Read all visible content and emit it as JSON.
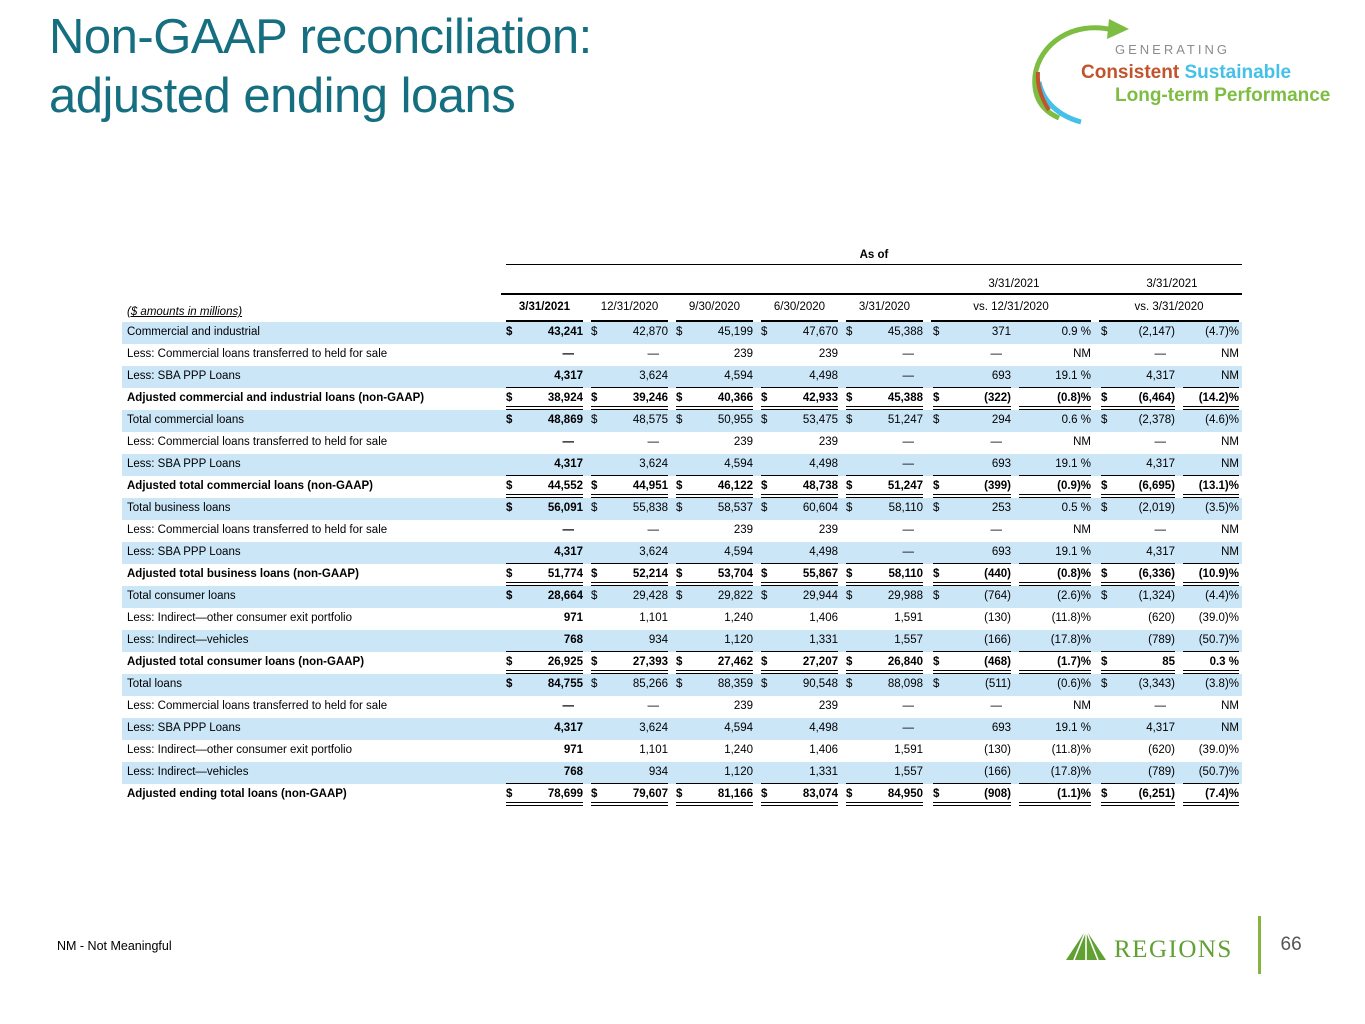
{
  "slide": {
    "title_line1": "Non-GAAP reconciliation:",
    "title_line2": "adjusted ending loans",
    "footnote": "NM - Not Meaningful",
    "page_number": "66"
  },
  "tagline": {
    "word_generating": "GENERATING",
    "word_consistent": "Consistent",
    "word_sustainable": " Sustainable",
    "word_longterm": "Long-term Performance",
    "colors": {
      "generating": "#8a8c8e",
      "consistent": "#c2532c",
      "sustainable": "#45c0e8",
      "longterm": "#7cbd42"
    }
  },
  "regions_logo": {
    "wordmark": "REGIONS",
    "green": "#61a033"
  },
  "theme": {
    "title_teal": "#166f80",
    "band_blue": "#cbe6f7"
  },
  "table": {
    "caption": "($ amounts in millions)",
    "as_of_label": "As of",
    "date_columns": [
      "3/31/2021",
      "12/31/2020",
      "9/30/2020",
      "6/30/2020",
      "3/31/2020"
    ],
    "vs_headers": [
      {
        "top": "3/31/2021",
        "bottom": "vs. 12/31/2020"
      },
      {
        "top": "3/31/2021",
        "bottom": "vs. 3/31/2020"
      }
    ],
    "rows": [
      {
        "label": "Commercial and industrial",
        "shade": true,
        "bold": false,
        "dollar": true,
        "vals": [
          "43,241",
          "42,870",
          "45,199",
          "47,670",
          "45,388"
        ],
        "vs1_amt": "371",
        "vs1_pct": "0.9 %",
        "vs2_amt": "(2,147)",
        "vs2_pct": "(4.7)%",
        "ul": "none"
      },
      {
        "label": "Less: Commercial loans transferred to held for sale",
        "shade": false,
        "bold": false,
        "dollar": false,
        "vals": [
          "—",
          "—",
          "239",
          "239",
          "—"
        ],
        "vs1_amt": "—",
        "vs1_pct": "NM",
        "vs2_amt": "—",
        "vs2_pct": "NM",
        "ul": "none"
      },
      {
        "label": "Less: SBA PPP Loans",
        "shade": true,
        "bold": false,
        "dollar": false,
        "vals": [
          "4,317",
          "3,624",
          "4,594",
          "4,498",
          "—"
        ],
        "vs1_amt": "693",
        "vs1_pct": "19.1 %",
        "vs2_amt": "4,317",
        "vs2_pct": "NM",
        "ul": "single"
      },
      {
        "label": "Adjusted commercial and industrial loans (non-GAAP)",
        "shade": false,
        "bold": true,
        "dollar": true,
        "vals": [
          "38,924",
          "39,246",
          "40,366",
          "42,933",
          "45,388"
        ],
        "vs1_amt": "(322)",
        "vs1_pct": "(0.8)%",
        "vs2_amt": "(6,464)",
        "vs2_pct": "(14.2)%",
        "ul": "double"
      },
      {
        "label": "Total commercial loans",
        "shade": true,
        "bold": false,
        "dollar": true,
        "vals": [
          "48,869",
          "48,575",
          "50,955",
          "53,475",
          "51,247"
        ],
        "vs1_amt": "294",
        "vs1_pct": "0.6 %",
        "vs2_amt": "(2,378)",
        "vs2_pct": "(4.6)%",
        "ul": "none"
      },
      {
        "label": "Less: Commercial loans transferred to held for sale",
        "shade": false,
        "bold": false,
        "dollar": false,
        "vals": [
          "—",
          "—",
          "239",
          "239",
          "—"
        ],
        "vs1_amt": "—",
        "vs1_pct": "NM",
        "vs2_amt": "—",
        "vs2_pct": "NM",
        "ul": "none"
      },
      {
        "label": "Less: SBA PPP Loans",
        "shade": true,
        "bold": false,
        "dollar": false,
        "vals": [
          "4,317",
          "3,624",
          "4,594",
          "4,498",
          "—"
        ],
        "vs1_amt": "693",
        "vs1_pct": "19.1 %",
        "vs2_amt": "4,317",
        "vs2_pct": "NM",
        "ul": "single"
      },
      {
        "label": "Adjusted total commercial loans (non-GAAP)",
        "shade": false,
        "bold": true,
        "dollar": true,
        "vals": [
          "44,552",
          "44,951",
          "46,122",
          "48,738",
          "51,247"
        ],
        "vs1_amt": "(399)",
        "vs1_pct": "(0.9)%",
        "vs2_amt": "(6,695)",
        "vs2_pct": "(13.1)%",
        "ul": "double"
      },
      {
        "label": "Total business loans",
        "shade": true,
        "bold": false,
        "dollar": true,
        "vals": [
          "56,091",
          "55,838",
          "58,537",
          "60,604",
          "58,110"
        ],
        "vs1_amt": "253",
        "vs1_pct": "0.5 %",
        "vs2_amt": "(2,019)",
        "vs2_pct": "(3.5)%",
        "ul": "none"
      },
      {
        "label": "Less: Commercial loans transferred to held for sale",
        "shade": false,
        "bold": false,
        "dollar": false,
        "vals": [
          "—",
          "—",
          "239",
          "239",
          "—"
        ],
        "vs1_amt": "—",
        "vs1_pct": "NM",
        "vs2_amt": "—",
        "vs2_pct": "NM",
        "ul": "none"
      },
      {
        "label": "Less: SBA PPP Loans",
        "shade": true,
        "bold": false,
        "dollar": false,
        "vals": [
          "4,317",
          "3,624",
          "4,594",
          "4,498",
          "—"
        ],
        "vs1_amt": "693",
        "vs1_pct": "19.1 %",
        "vs2_amt": "4,317",
        "vs2_pct": "NM",
        "ul": "single"
      },
      {
        "label": "Adjusted total business loans (non-GAAP)",
        "shade": false,
        "bold": true,
        "dollar": true,
        "vals": [
          "51,774",
          "52,214",
          "53,704",
          "55,867",
          "58,110"
        ],
        "vs1_amt": "(440)",
        "vs1_pct": "(0.8)%",
        "vs2_amt": "(6,336)",
        "vs2_pct": "(10.9)%",
        "ul": "double"
      },
      {
        "label": "Total consumer loans",
        "shade": true,
        "bold": false,
        "dollar": true,
        "vals": [
          "28,664",
          "29,428",
          "29,822",
          "29,944",
          "29,988"
        ],
        "vs1_amt": "(764)",
        "vs1_pct": "(2.6)%",
        "vs2_amt": "(1,324)",
        "vs2_pct": "(4.4)%",
        "ul": "none"
      },
      {
        "label": "Less: Indirect—other consumer exit portfolio",
        "shade": false,
        "bold": false,
        "dollar": false,
        "vals": [
          "971",
          "1,101",
          "1,240",
          "1,406",
          "1,591"
        ],
        "vs1_amt": "(130)",
        "vs1_pct": "(11.8)%",
        "vs2_amt": "(620)",
        "vs2_pct": "(39.0)%",
        "ul": "none"
      },
      {
        "label": "Less: Indirect—vehicles",
        "shade": true,
        "bold": false,
        "dollar": false,
        "vals": [
          "768",
          "934",
          "1,120",
          "1,331",
          "1,557"
        ],
        "vs1_amt": "(166)",
        "vs1_pct": "(17.8)%",
        "vs2_amt": "(789)",
        "vs2_pct": "(50.7)%",
        "ul": "single"
      },
      {
        "label": "Adjusted total consumer loans (non-GAAP)",
        "shade": false,
        "bold": true,
        "dollar": true,
        "vals": [
          "26,925",
          "27,393",
          "27,462",
          "27,207",
          "26,840"
        ],
        "vs1_amt": "(468)",
        "vs1_pct": "(1.7)%",
        "vs2_amt": "85",
        "vs2_pct": "0.3 %",
        "ul": "double"
      },
      {
        "label": "Total loans",
        "shade": true,
        "bold": false,
        "dollar": true,
        "vals": [
          "84,755",
          "85,266",
          "88,359",
          "90,548",
          "88,098"
        ],
        "vs1_amt": "(511)",
        "vs1_pct": "(0.6)%",
        "vs2_amt": "(3,343)",
        "vs2_pct": "(3.8)%",
        "ul": "none"
      },
      {
        "label": "Less: Commercial loans transferred to held for sale",
        "shade": false,
        "bold": false,
        "dollar": false,
        "vals": [
          "—",
          "—",
          "239",
          "239",
          "—"
        ],
        "vs1_amt": "—",
        "vs1_pct": "NM",
        "vs2_amt": "—",
        "vs2_pct": "NM",
        "ul": "none"
      },
      {
        "label": "Less: SBA PPP Loans",
        "shade": true,
        "bold": false,
        "dollar": false,
        "vals": [
          "4,317",
          "3,624",
          "4,594",
          "4,498",
          "—"
        ],
        "vs1_amt": "693",
        "vs1_pct": "19.1 %",
        "vs2_amt": "4,317",
        "vs2_pct": "NM",
        "ul": "none"
      },
      {
        "label": "Less: Indirect—other consumer exit portfolio",
        "shade": false,
        "bold": false,
        "dollar": false,
        "vals": [
          "971",
          "1,101",
          "1,240",
          "1,406",
          "1,591"
        ],
        "vs1_amt": "(130)",
        "vs1_pct": "(11.8)%",
        "vs2_amt": "(620)",
        "vs2_pct": "(39.0)%",
        "ul": "none"
      },
      {
        "label": "Less: Indirect—vehicles",
        "shade": true,
        "bold": false,
        "dollar": false,
        "vals": [
          "768",
          "934",
          "1,120",
          "1,331",
          "1,557"
        ],
        "vs1_amt": "(166)",
        "vs1_pct": "(17.8)%",
        "vs2_amt": "(789)",
        "vs2_pct": "(50.7)%",
        "ul": "single"
      },
      {
        "label": "Adjusted ending total loans (non-GAAP)",
        "shade": false,
        "bold": true,
        "dollar": true,
        "vals": [
          "78,699",
          "79,607",
          "81,166",
          "83,074",
          "84,950"
        ],
        "vs1_amt": "(908)",
        "vs1_pct": "(1.1)%",
        "vs2_amt": "(6,251)",
        "vs2_pct": "(7.4)%",
        "ul": "double"
      }
    ]
  }
}
